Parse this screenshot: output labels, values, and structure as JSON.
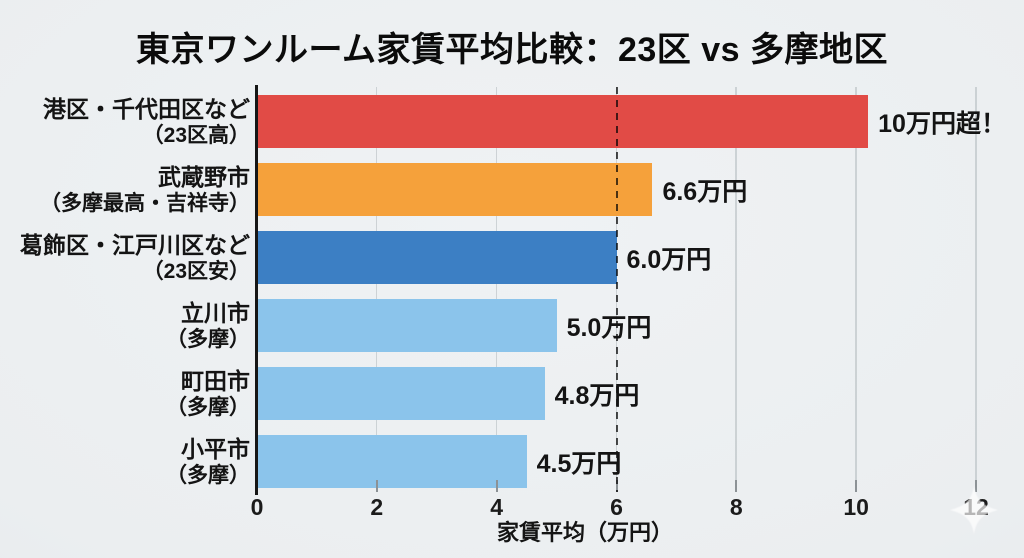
{
  "title": "東京ワンルーム家賃平均比較：23区 vs 多摩地区",
  "chart_data": {
    "type": "bar",
    "orientation": "horizontal",
    "title": "東京ワンルーム家賃平均比較：23区 vs 多摩地区",
    "xlabel": "家賃平均（万円）",
    "ylabel": "",
    "xlim": [
      0,
      12
    ],
    "xticks": [
      0,
      2,
      4,
      6,
      8,
      10,
      12
    ],
    "reference_line_x": 6,
    "grid": true,
    "legend_position": "none",
    "bars": [
      {
        "label": "港区・千代田区など",
        "sublabel": "（23区高）",
        "value": 10.2,
        "value_label": "10万円超！",
        "color": "#E14B46"
      },
      {
        "label": "武蔵野市",
        "sublabel": "（多摩最高・吉祥寺）",
        "value": 6.6,
        "value_label": "6.6万円",
        "color": "#F5A13B"
      },
      {
        "label": "葛飾区・江戸川区など",
        "sublabel": "（23区安）",
        "value": 6.0,
        "value_label": "6.0万円",
        "color": "#3C7FC4"
      },
      {
        "label": "立川市",
        "sublabel": "（多摩）",
        "value": 5.0,
        "value_label": "5.0万円",
        "color": "#8BC4EB"
      },
      {
        "label": "町田市",
        "sublabel": "（多摩）",
        "value": 4.8,
        "value_label": "4.8万円",
        "color": "#8BC4EB"
      },
      {
        "label": "小平市",
        "sublabel": "（多摩）",
        "value": 4.5,
        "value_label": "4.5万円",
        "color": "#8BC4EB"
      }
    ]
  },
  "colors": {
    "background": "#ECEFF1",
    "text": "#141414",
    "reference_line": "#4D4D4D",
    "gridline": "#A5ACB2",
    "tick": "#8C9296",
    "sparkle": "#FFFFFF"
  }
}
